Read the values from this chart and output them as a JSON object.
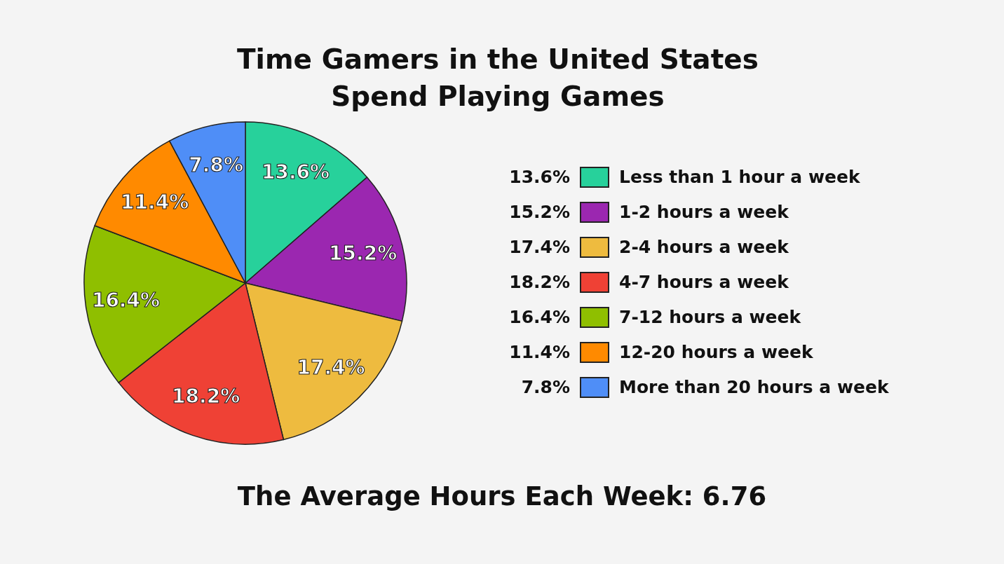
{
  "chart_data": {
    "type": "pie",
    "title": "Time Gamers in the United States Spend Playing Games",
    "categories": [
      "Less than 1 hour a week",
      "1-2 hours a week",
      "2-4 hours a week",
      "4-7 hours a week",
      "7-12 hours a week",
      "12-20 hours a week",
      "More than 20 hours a week"
    ],
    "values": [
      13.6,
      15.2,
      17.4,
      18.2,
      16.4,
      11.4,
      7.8
    ],
    "value_labels": [
      "13.6%",
      "15.2%",
      "17.4%",
      "18.2%",
      "16.4%",
      "11.4%",
      "7.8%"
    ],
    "colors": [
      "#27d19b",
      "#9b27b0",
      "#eebb3f",
      "#ef4135",
      "#8fbf00",
      "#ff8a00",
      "#4f8ef7"
    ],
    "legend": "right",
    "annotations": [
      "The Average Hours Each Week: 6.76"
    ]
  }
}
